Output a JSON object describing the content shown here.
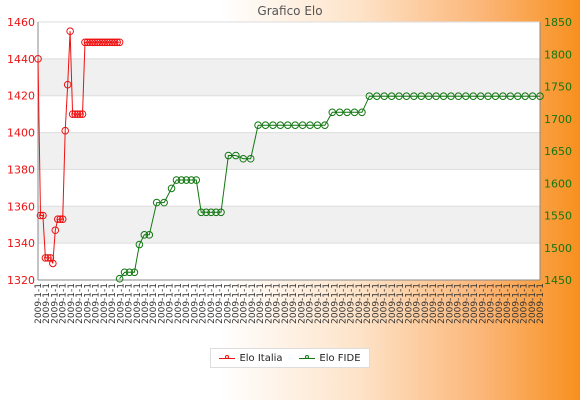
{
  "chart_data": {
    "type": "line",
    "title": "Grafico Elo",
    "left_axis": {
      "ylim": [
        1320,
        1460
      ],
      "ticks": [
        1320,
        1340,
        1360,
        1380,
        1400,
        1420,
        1440,
        1460
      ],
      "color": "#ee1111"
    },
    "right_axis": {
      "ylim": [
        1450,
        1850
      ],
      "ticks": [
        1450,
        1500,
        1550,
        1600,
        1650,
        1700,
        1750,
        1800,
        1850
      ],
      "color": "#117711"
    },
    "grid": true,
    "legend_position": "bottom",
    "series": [
      {
        "name": "Elo Italia",
        "axis": "left",
        "color": "#ee1111",
        "x": [
          0,
          1,
          2,
          3,
          4,
          5,
          6,
          7,
          8,
          9,
          10,
          11,
          12,
          13,
          14,
          15,
          16,
          17,
          18,
          19,
          20,
          21,
          22,
          23,
          24,
          25,
          26,
          27,
          28,
          29,
          30,
          31,
          32,
          33
        ],
        "values": [
          1440,
          1355,
          1355,
          1332,
          1332,
          1332,
          1329,
          1347,
          1353,
          1353,
          1353,
          1401,
          1426,
          1455,
          1410,
          1410,
          1410,
          1410,
          1410,
          1449,
          1449,
          1449,
          1449,
          1449,
          1449,
          1449,
          1449,
          1449,
          1449,
          1449,
          1449,
          1449,
          1449,
          1449
        ]
      },
      {
        "name": "Elo FIDE",
        "axis": "right",
        "color": "#117711",
        "x": [
          33,
          35,
          37,
          39,
          41,
          43,
          45,
          48,
          51,
          54,
          56,
          58,
          60,
          62,
          64,
          66,
          68,
          70,
          72,
          74,
          77,
          80,
          83,
          86,
          89,
          92,
          95,
          98,
          101,
          104,
          107,
          110,
          113,
          116,
          119,
          122,
          125,
          128,
          131,
          134,
          137,
          140,
          143,
          146,
          149,
          152,
          155,
          158,
          161,
          164,
          167,
          170,
          173,
          176,
          179,
          182,
          185,
          188,
          191,
          194,
          197,
          200,
          203
        ],
        "values": [
          1452,
          1462,
          1462,
          1462,
          1505,
          1520,
          1520,
          1570,
          1570,
          1592,
          1605,
          1605,
          1605,
          1605,
          1605,
          1555,
          1555,
          1555,
          1555,
          1555,
          1643,
          1643,
          1638,
          1638,
          1690,
          1690,
          1690,
          1690,
          1690,
          1690,
          1690,
          1690,
          1690,
          1690,
          1710,
          1710,
          1710,
          1710,
          1710,
          1735,
          1735,
          1735,
          1735,
          1735,
          1735,
          1735,
          1735,
          1735,
          1735,
          1735,
          1735,
          1735,
          1735,
          1735,
          1735,
          1735,
          1735,
          1735,
          1735,
          1735,
          1735,
          1735,
          1735
        ]
      }
    ],
    "x_tick_labels": [
      "2009-1-1",
      "2009-1-1",
      "2009-1-1",
      "2009-1-1",
      "2009-1-1",
      "2009-1-1",
      "2009-1-1",
      "2009-1-1",
      "2009-1-1",
      "2009-1-1",
      "2009-1-1",
      "2009-1-1",
      "2009-1-1",
      "2009-1-1",
      "2009-1-1",
      "2009-1-1",
      "2009-1-1",
      "2009-1-1",
      "2009-1-1",
      "2009-1-1",
      "2009-1-1",
      "2009-1-1",
      "2009-1-1",
      "2009-1-1",
      "2009-1-1",
      "2009-1-1",
      "2009-1-1",
      "2009-1-1",
      "2009-1-1",
      "2009-1-1",
      "2009-1-1",
      "2009-1-1",
      "2009-1-1",
      "2009-1-1",
      "2009-1-1",
      "2009-1-1",
      "2009-1-1",
      "2009-1-1",
      "2009-1-1",
      "2009-1-1",
      "2009-1-1",
      "2009-1-1",
      "2009-1-1",
      "2009-1-1",
      "2009-1-1",
      "2009-1-1",
      "2009-1-1",
      "2009-1-1",
      "2009-1-1",
      "2009-1-1",
      "2009-1-1",
      "2009-1-1",
      "2009-1-1",
      "2009-1-1",
      "2009-1-1",
      "2009-1-1",
      "2009-1-1",
      "2009-1-1",
      "2009-1-1",
      "2009-1-1",
      "2009-1-1",
      "2009-1-1"
    ]
  }
}
